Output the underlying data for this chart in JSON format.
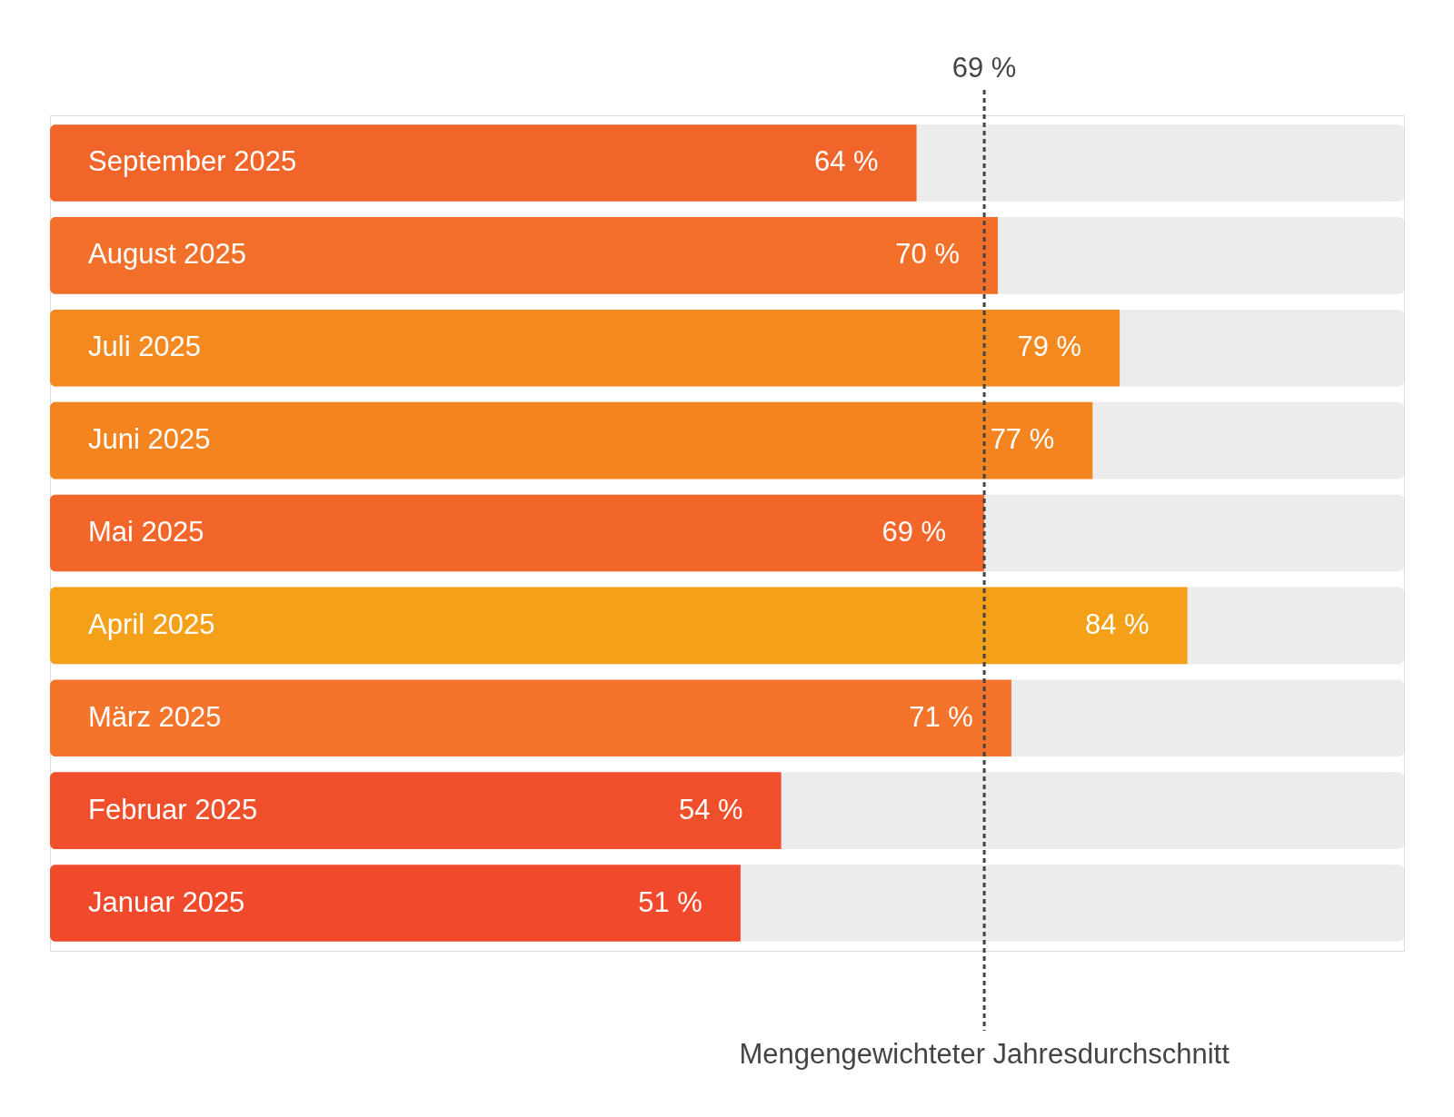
{
  "chart_data": {
    "type": "bar",
    "orientation": "horizontal",
    "categories": [
      "September 2025",
      "August 2025",
      "Juli 2025",
      "Juni 2025",
      "Mai 2025",
      "April 2025",
      "März 2025",
      "Februar 2025",
      "Januar 2025"
    ],
    "values": [
      64,
      70,
      79,
      77,
      69,
      84,
      71,
      54,
      51
    ],
    "value_labels": [
      "64 %",
      "70 %",
      "79 %",
      "77 %",
      "69 %",
      "84 %",
      "71 %",
      "54 %",
      "51 %"
    ],
    "colors": [
      "#f2652a",
      "#f3702a",
      "#f48a1f",
      "#f4841f",
      "#f2662a",
      "#f5a019",
      "#f3742a",
      "#f04f2b",
      "#f0492c"
    ],
    "xlim": [
      0,
      100
    ],
    "ref_lines": [
      {
        "axis": "x",
        "value": 69,
        "label": "69 %",
        "line_style": "dashed",
        "color": "#444444"
      }
    ],
    "annotations": [
      "Mengengewichteter Jahresdurchschnitt"
    ]
  }
}
